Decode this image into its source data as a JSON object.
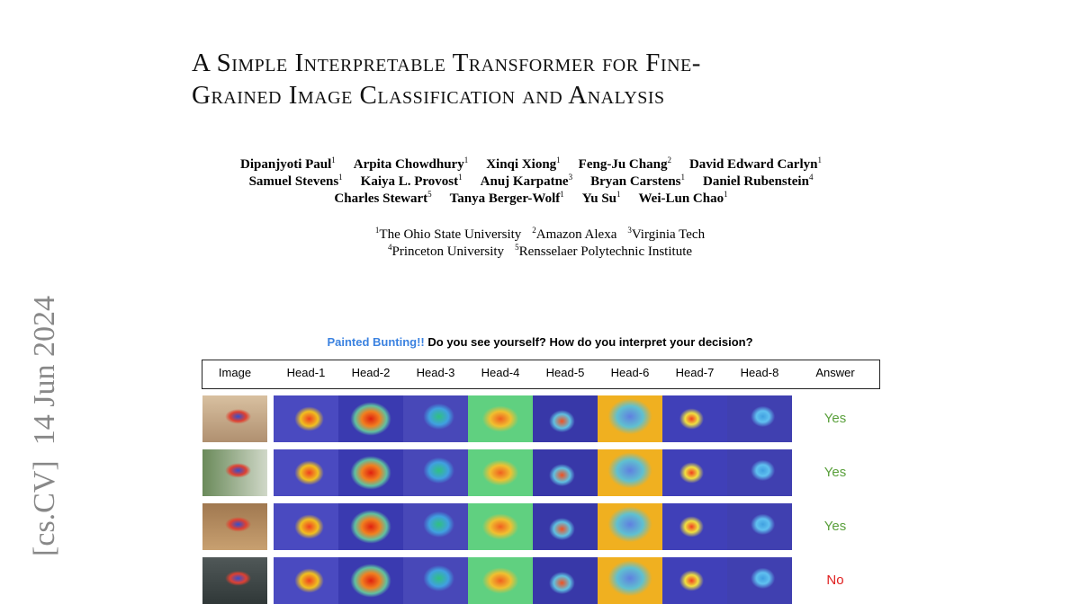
{
  "arxiv": {
    "category": "[cs.CV]",
    "date": "14 Jun 2024"
  },
  "title": [
    "A Simple Interpretable Transformer for Fine-",
    "Grained Image Classification and Analysis"
  ],
  "author_lines": [
    [
      {
        "name": "Dipanjyoti Paul",
        "aff": "1"
      },
      {
        "name": "Arpita Chowdhury",
        "aff": "1"
      },
      {
        "name": "Xinqi Xiong",
        "aff": "1"
      },
      {
        "name": "Feng-Ju Chang",
        "aff": "2"
      },
      {
        "name": "David Edward Carlyn",
        "aff": "1"
      }
    ],
    [
      {
        "name": "Samuel Stevens",
        "aff": "1"
      },
      {
        "name": "Kaiya L. Provost",
        "aff": "1"
      },
      {
        "name": "Anuj Karpatne",
        "aff": "3"
      },
      {
        "name": "Bryan Carstens",
        "aff": "1"
      },
      {
        "name": "Daniel Rubenstein",
        "aff": "4"
      }
    ],
    [
      {
        "name": "Charles Stewart",
        "aff": "5"
      },
      {
        "name": "Tanya Berger-Wolf",
        "aff": "1"
      },
      {
        "name": "Yu Su",
        "aff": "1"
      },
      {
        "name": "Wei-Lun Chao",
        "aff": "1"
      }
    ]
  ],
  "affiliation_lines": [
    [
      {
        "mark": "1",
        "name": "The Ohio State University"
      },
      {
        "mark": "2",
        "name": "Amazon Alexa"
      },
      {
        "mark": "3",
        "name": "Virginia Tech"
      }
    ],
    [
      {
        "mark": "4",
        "name": "Princeton University"
      },
      {
        "mark": "5",
        "name": "Rensselaer Polytechnic Institute"
      }
    ]
  ],
  "figure": {
    "caption_highlight": "Painted Bunting!!",
    "caption": "Do you see yourself? How do you interpret your decision?",
    "headers": [
      "Image",
      "Head-1",
      "Head-2",
      "Head-3",
      "Head-4",
      "Head-5",
      "Head-6",
      "Head-7",
      "Head-8",
      "Answer"
    ],
    "answers": [
      "Yes",
      "Yes",
      "Yes",
      "No"
    ]
  }
}
